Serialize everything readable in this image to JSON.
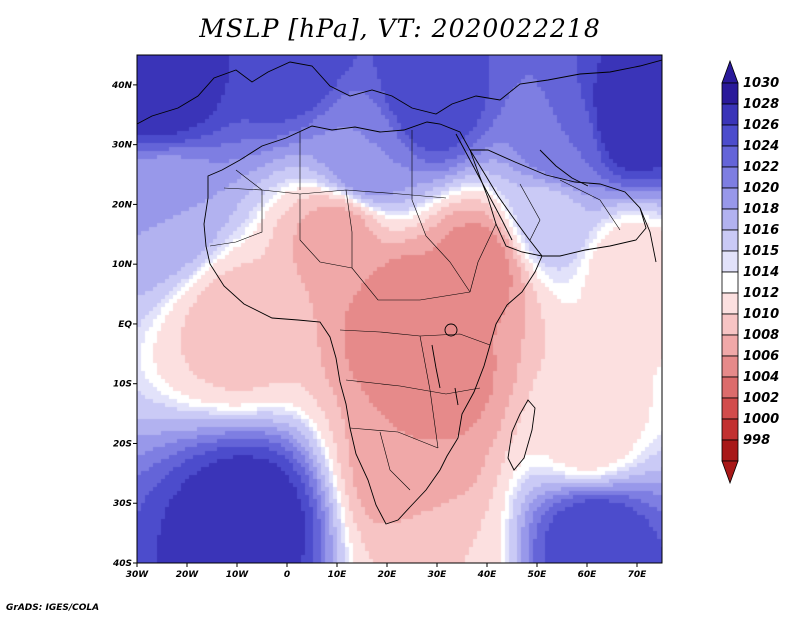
{
  "title": "MSLP [hPa], VT: 2020022218",
  "credit": "GrADS: IGES/COLA",
  "lon_ticks": [
    "30W",
    "20W",
    "10W",
    "0",
    "10E",
    "20E",
    "30E",
    "40E",
    "50E",
    "60E",
    "70E"
  ],
  "lat_ticks": [
    "40N",
    "30N",
    "20N",
    "10N",
    "EQ",
    "10S",
    "20S",
    "30S",
    "40S"
  ],
  "colorbar": {
    "labels": [
      "1030",
      "1028",
      "1026",
      "1024",
      "1022",
      "1020",
      "1018",
      "1016",
      "1015",
      "1014",
      "1012",
      "1010",
      "1008",
      "1006",
      "1004",
      "1002",
      "1000",
      "998"
    ],
    "colors": [
      "#2a1a9a",
      "#3a34b8",
      "#4c4ccc",
      "#6464d8",
      "#7e7ee2",
      "#9898ea",
      "#b2b2f0",
      "#cacaf6",
      "#e2e2fa",
      "#ffffff",
      "#fce0e0",
      "#f7c4c4",
      "#f0a8a8",
      "#e68a8a",
      "#dc6c6c",
      "#d24c4c",
      "#c23030",
      "#a81818"
    ]
  },
  "chart_data": {
    "type": "map",
    "variable": "MSLP [hPa]",
    "valid_time": "2020022218",
    "lon_range": [
      -30,
      75
    ],
    "lat_range": [
      -40,
      45
    ],
    "pressure_centres": [
      {
        "lon": -8,
        "lat": -33,
        "value": 1030
      },
      {
        "lon": 61,
        "lat": -36,
        "value": 1028
      },
      {
        "lon": -26,
        "lat": 40,
        "value": 1030
      },
      {
        "lon": 28,
        "lat": 38,
        "value": 1028
      },
      {
        "lon": 68,
        "lat": 34,
        "value": 1030
      },
      {
        "lon": 55,
        "lat": 30,
        "value": 1024
      },
      {
        "lon": 23,
        "lat": 2,
        "value": 1006
      },
      {
        "lon": 30,
        "lat": -8,
        "value": 1007
      },
      {
        "lon": 25,
        "lat": -24,
        "value": 1008
      },
      {
        "lon": 10,
        "lat": 15,
        "value": 1009
      },
      {
        "lon": 38,
        "lat": 10,
        "value": 1007
      },
      {
        "lon": 60,
        "lat": -18,
        "value": 1013
      },
      {
        "lon": -10,
        "lat": 0,
        "value": 1011
      },
      {
        "lon": 15,
        "lat": 28,
        "value": 1022
      },
      {
        "lon": 0,
        "lat": 45,
        "value": 1028
      },
      {
        "lon": 30,
        "lat": -38,
        "value": 1012
      },
      {
        "lon": 68,
        "lat": 10,
        "value": 1013
      },
      {
        "lon": 52,
        "lat": 18,
        "value": 1017
      },
      {
        "lon": -25,
        "lat": 20,
        "value": 1020
      }
    ]
  }
}
